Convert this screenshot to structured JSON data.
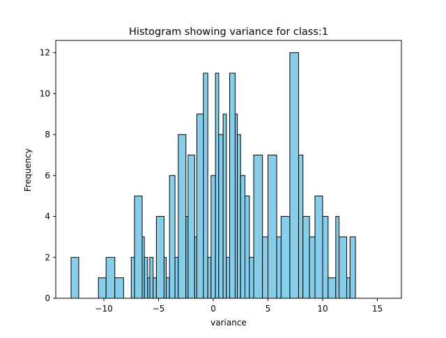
{
  "chart_data": {
    "type": "bar",
    "subtype": "histogram",
    "title": "Histogram showing variance for class:1",
    "xlabel": "variance",
    "ylabel": "Frequency",
    "xlim": [
      -14.4,
      17.2
    ],
    "ylim": [
      0,
      12.6
    ],
    "xticks": [
      -10,
      -5,
      0,
      5,
      10,
      15
    ],
    "xtick_labels": [
      "−10",
      "−5",
      "0",
      "5",
      "10",
      "15"
    ],
    "yticks": [
      0,
      2,
      4,
      6,
      8,
      10,
      12
    ],
    "ytick_labels": [
      "0",
      "2",
      "4",
      "6",
      "8",
      "10",
      "12"
    ],
    "grid": false,
    "bar_color": "#87ceeb",
    "edge_color": "#000000",
    "bins": [
      {
        "x0": -13.0,
        "x1": -12.3,
        "count": 2
      },
      {
        "x0": -10.5,
        "x1": -9.8,
        "count": 1
      },
      {
        "x0": -9.8,
        "x1": -9.0,
        "count": 2
      },
      {
        "x0": -9.0,
        "x1": -8.2,
        "count": 1
      },
      {
        "x0": -7.5,
        "x1": -7.2,
        "count": 2
      },
      {
        "x0": -7.2,
        "x1": -6.5,
        "count": 5
      },
      {
        "x0": -6.5,
        "x1": -6.3,
        "count": 3
      },
      {
        "x0": -6.3,
        "x1": -6.0,
        "count": 2
      },
      {
        "x0": -6.0,
        "x1": -5.8,
        "count": 1
      },
      {
        "x0": -5.8,
        "x1": -5.5,
        "count": 2
      },
      {
        "x0": -5.5,
        "x1": -5.2,
        "count": 1
      },
      {
        "x0": -5.2,
        "x1": -4.5,
        "count": 4
      },
      {
        "x0": -4.5,
        "x1": -4.3,
        "count": 2
      },
      {
        "x0": -4.3,
        "x1": -4.0,
        "count": 1
      },
      {
        "x0": -4.0,
        "x1": -3.5,
        "count": 6
      },
      {
        "x0": -3.5,
        "x1": -3.2,
        "count": 2
      },
      {
        "x0": -3.2,
        "x1": -2.5,
        "count": 8
      },
      {
        "x0": -2.5,
        "x1": -2.3,
        "count": 4
      },
      {
        "x0": -2.3,
        "x1": -1.7,
        "count": 7
      },
      {
        "x0": -1.7,
        "x1": -1.5,
        "count": 3
      },
      {
        "x0": -1.5,
        "x1": -0.9,
        "count": 9
      },
      {
        "x0": -0.9,
        "x1": -0.5,
        "count": 11
      },
      {
        "x0": -0.5,
        "x1": -0.2,
        "count": 2
      },
      {
        "x0": -0.2,
        "x1": 0.2,
        "count": 6
      },
      {
        "x0": 0.2,
        "x1": 0.5,
        "count": 11
      },
      {
        "x0": 0.5,
        "x1": 0.9,
        "count": 8
      },
      {
        "x0": 0.9,
        "x1": 1.2,
        "count": 9
      },
      {
        "x0": 1.2,
        "x1": 1.5,
        "count": 2
      },
      {
        "x0": 1.5,
        "x1": 2.0,
        "count": 11
      },
      {
        "x0": 2.0,
        "x1": 2.2,
        "count": 9
      },
      {
        "x0": 2.2,
        "x1": 2.5,
        "count": 8
      },
      {
        "x0": 2.5,
        "x1": 2.9,
        "count": 6
      },
      {
        "x0": 2.9,
        "x1": 3.3,
        "count": 5
      },
      {
        "x0": 3.3,
        "x1": 3.7,
        "count": 2
      },
      {
        "x0": 3.7,
        "x1": 4.5,
        "count": 7
      },
      {
        "x0": 4.5,
        "x1": 5.0,
        "count": 3
      },
      {
        "x0": 5.0,
        "x1": 5.8,
        "count": 7
      },
      {
        "x0": 5.8,
        "x1": 6.2,
        "count": 3
      },
      {
        "x0": 6.2,
        "x1": 7.0,
        "count": 4
      },
      {
        "x0": 7.0,
        "x1": 7.8,
        "count": 12
      },
      {
        "x0": 7.8,
        "x1": 8.2,
        "count": 7
      },
      {
        "x0": 8.2,
        "x1": 8.8,
        "count": 4
      },
      {
        "x0": 8.8,
        "x1": 9.3,
        "count": 3
      },
      {
        "x0": 9.3,
        "x1": 10.0,
        "count": 5
      },
      {
        "x0": 10.0,
        "x1": 10.5,
        "count": 4
      },
      {
        "x0": 10.5,
        "x1": 11.2,
        "count": 1
      },
      {
        "x0": 11.2,
        "x1": 11.5,
        "count": 4
      },
      {
        "x0": 11.5,
        "x1": 12.2,
        "count": 3
      },
      {
        "x0": 12.2,
        "x1": 12.5,
        "count": 1
      },
      {
        "x0": 12.5,
        "x1": 13.0,
        "count": 3
      }
    ]
  }
}
